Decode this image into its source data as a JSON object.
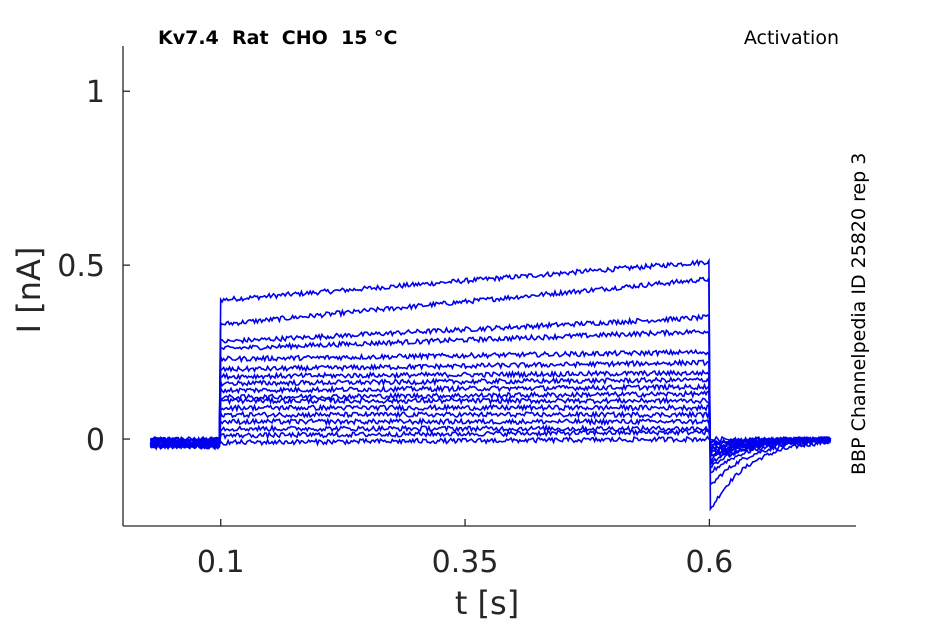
{
  "header": {
    "title": "Kv7.4  Rat  CHO  15 °C",
    "protocol": "Activation",
    "source": "BBP Channelpedia ID 25820 rep 3"
  },
  "colors": {
    "trace": "#0000ee",
    "axis": "#262626"
  },
  "chart_data": {
    "type": "line",
    "title": "Kv7.4  Rat  CHO  15 °C",
    "xlabel": "t [s]",
    "ylabel": "I [nA]",
    "xlim": [
      0.0,
      0.75
    ],
    "ylim": [
      -0.25,
      1.13
    ],
    "xticks": [
      0.1,
      0.35,
      0.6
    ],
    "xtick_labels": [
      "0.1",
      "0.35",
      "0.6"
    ],
    "yticks": [
      0,
      0.5,
      1
    ],
    "ytick_labels": [
      "0",
      "0.5",
      "1"
    ],
    "grid": false,
    "series_count": 17,
    "step_start_s": 0.1,
    "step_end_s": 0.6,
    "trace_start_s": 0.028,
    "trace_end_s": 0.725,
    "series": [
      {
        "start": 0.4,
        "end": 0.51,
        "tail": -0.21
      },
      {
        "start": 0.33,
        "end": 0.46,
        "tail": -0.14
      },
      {
        "start": 0.28,
        "end": 0.35,
        "tail": -0.1
      },
      {
        "start": 0.26,
        "end": 0.31,
        "tail": -0.08
      },
      {
        "start": 0.23,
        "end": 0.25,
        "tail": -0.07
      },
      {
        "start": 0.2,
        "end": 0.22,
        "tail": -0.06
      },
      {
        "start": 0.18,
        "end": 0.19,
        "tail": -0.05
      },
      {
        "start": 0.16,
        "end": 0.17,
        "tail": -0.05
      },
      {
        "start": 0.14,
        "end": 0.15,
        "tail": -0.04
      },
      {
        "start": 0.12,
        "end": 0.13,
        "tail": -0.04
      },
      {
        "start": 0.11,
        "end": 0.11,
        "tail": -0.03
      },
      {
        "start": 0.09,
        "end": 0.09,
        "tail": -0.03
      },
      {
        "start": 0.07,
        "end": 0.07,
        "tail": -0.02
      },
      {
        "start": 0.05,
        "end": 0.05,
        "tail": -0.02
      },
      {
        "start": 0.03,
        "end": 0.03,
        "tail": -0.01
      },
      {
        "start": 0.01,
        "end": 0.02,
        "tail": -0.01
      },
      {
        "start": -0.01,
        "end": 0.0,
        "tail": 0.0
      }
    ]
  }
}
